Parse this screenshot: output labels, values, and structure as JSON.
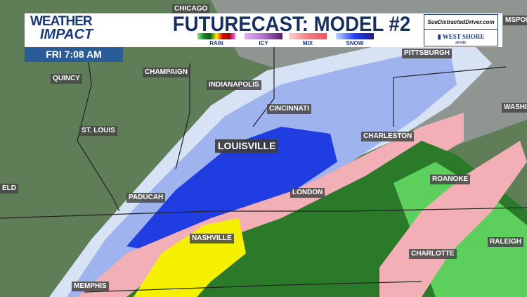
{
  "header": {
    "logo_line1": "WEATHER",
    "logo_line2": "IMPACT",
    "title": "FUTURECAST: MODEL #2",
    "time": "FRI 7:08 AM"
  },
  "legend": [
    {
      "label": "RAIN",
      "colors": [
        "#8fe08a",
        "#1a8a2a",
        "#0a5a12",
        "#ffee00",
        "#e00000",
        "#a00000",
        "#ff60ff"
      ]
    },
    {
      "label": "ICY",
      "colors": [
        "#e6b3f0",
        "#b070d0",
        "#5a1a6a"
      ]
    },
    {
      "label": "MIX",
      "colors": [
        "#fcd0d0",
        "#f58080",
        "#f05060"
      ]
    },
    {
      "label": "SNOW",
      "colors": [
        "#c0d4ff",
        "#2040ff",
        "#1a1a8a"
      ]
    }
  ],
  "sponsor": {
    "top": "SueDistractedDriver.com",
    "bottom": "WEST SHORE",
    "bottom_sub": "HOME"
  },
  "cities": [
    {
      "name": "CHICAGO"
    },
    {
      "name": "MSPOR"
    },
    {
      "name": "PITTSBURGH"
    },
    {
      "name": "QUINCY"
    },
    {
      "name": "CHAMPAIGN"
    },
    {
      "name": "INDIANAPOLIS"
    },
    {
      "name": "CINCINNATI"
    },
    {
      "name": "WASHI"
    },
    {
      "name": "ST. LOUIS"
    },
    {
      "name": "LOUISVILLE"
    },
    {
      "name": "CHARLESTON"
    },
    {
      "name": "ELD"
    },
    {
      "name": "PADUCAH"
    },
    {
      "name": "LONDON"
    },
    {
      "name": "ROANOKE"
    },
    {
      "name": "NASHVILLE"
    },
    {
      "name": "RALEIGH"
    },
    {
      "name": "MEMPHIS"
    },
    {
      "name": "CHARLOTTE"
    }
  ]
}
